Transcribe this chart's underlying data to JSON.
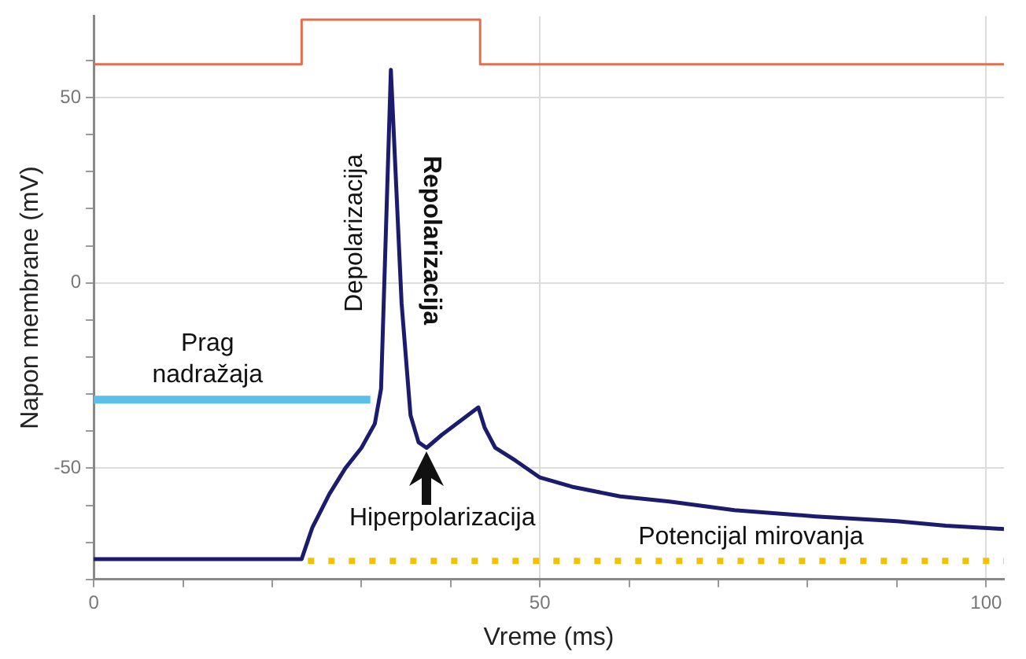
{
  "chart_data": {
    "type": "line",
    "xlabel": "Vreme (ms)",
    "ylabel": "Napon membrane (mV)",
    "xlim": [
      0,
      102
    ],
    "ylim": [
      -80,
      72
    ],
    "xticks": [
      0,
      {
        "value": 10,
        "label": null
      },
      {
        "value": 20,
        "label": null
      },
      {
        "value": 30,
        "label": null
      },
      {
        "value": 40,
        "label": null
      },
      50,
      {
        "value": 60,
        "label": null
      },
      {
        "value": 70,
        "label": null
      },
      {
        "value": 80,
        "label": null
      },
      {
        "value": 90,
        "label": null
      },
      100
    ],
    "yticks": [
      {
        "value": -80,
        "label": null
      },
      {
        "value": -70,
        "label": null
      },
      {
        "value": -60,
        "label": null
      },
      -50,
      {
        "value": -40,
        "label": null
      },
      {
        "value": -30,
        "label": null
      },
      {
        "value": -20,
        "label": null
      },
      {
        "value": -10,
        "label": null
      },
      0,
      {
        "value": 10,
        "label": null
      },
      {
        "value": 20,
        "label": null
      },
      {
        "value": 30,
        "label": null
      },
      {
        "value": 40,
        "label": null
      },
      50,
      {
        "value": 60,
        "label": null
      }
    ],
    "grid": true,
    "legend": false,
    "marker": "none",
    "series": [
      {
        "color": "#1c1c6e",
        "line_style": "solid",
        "x": [
          0,
          23.3,
          24.5,
          26.4,
          28.2,
          30,
          31.5,
          32.2,
          33.3,
          34.5,
          35.5,
          36.4,
          37.3,
          39,
          43.1,
          43.8,
          45,
          47.3,
          50,
          53.6,
          59,
          64.5,
          71.8,
          80.9,
          90,
          95.5,
          102
        ],
        "values": [
          -74.5,
          -74.5,
          -66,
          -57,
          -50,
          -44.5,
          -38,
          -28.6,
          57.5,
          -5.5,
          -35.7,
          -43,
          -44.5,
          -41,
          -33.6,
          -39,
          -44.5,
          -48,
          -52.5,
          -55,
          -57.6,
          -59,
          -61.3,
          -63,
          -64.3,
          -65.5,
          -66.4
        ]
      },
      {
        "color": "#e07050",
        "line_style": "solid",
        "x": [
          0,
          23.3,
          23.3,
          43.3,
          43.3,
          102
        ],
        "values": [
          59,
          59,
          71,
          71,
          59,
          59
        ]
      },
      {
        "color": "#5bbfea",
        "line_style": "solid",
        "x": [
          0,
          31
        ],
        "values": [
          -31.5,
          -31.5
        ]
      },
      {
        "color": "#f2c200",
        "line_style": "dotted",
        "x": [
          24,
          102
        ],
        "values": [
          -75,
          -75
        ]
      }
    ],
    "annotations": [
      "Prag nadražaja",
      "Depolarizacija",
      "Repolarizacija",
      "Hiperpolarizacija",
      "Potencijal mirovanja"
    ]
  }
}
